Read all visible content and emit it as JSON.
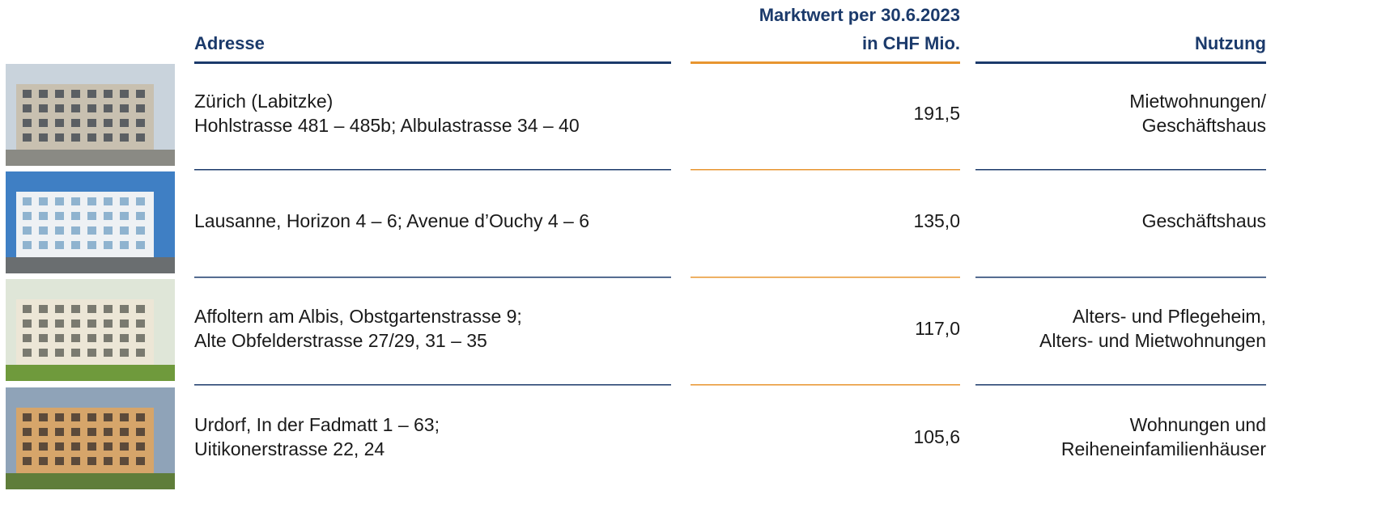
{
  "header": {
    "address": "Adresse",
    "value": [
      "Marktwert per 30.6.2023",
      "in CHF Mio."
    ],
    "usage": "Nutzung"
  },
  "table": {
    "rows": [
      {
        "address": [
          "Zürich (Labitzke)",
          "Hohlstrasse 481 – 485b; Albulastrasse 34 – 40"
        ],
        "value": "191,5",
        "usage": [
          "Mietwohnungen/",
          "Geschäftshaus"
        ]
      },
      {
        "address": [
          "Lausanne, Horizon 4 – 6; Avenue d’Ouchy 4 – 6"
        ],
        "value": "135,0",
        "usage": [
          "Geschäftshaus"
        ]
      },
      {
        "address": [
          "Affoltern am Albis, Obstgartenstrasse 9;",
          "Alte Obfelderstrasse 27/29, 31 – 35"
        ],
        "value": "117,0",
        "usage": [
          "Alters- und Pflegeheim,",
          "Alters- und Mietwohnungen"
        ]
      },
      {
        "address": [
          "Urdorf, In der Fadmatt 1 – 63;",
          "Uitikonerstrasse 22, 24"
        ],
        "value": "105,6",
        "usage": [
          "Wohnungen und",
          "Reiheneinfamilienhäuser"
        ]
      }
    ]
  }
}
